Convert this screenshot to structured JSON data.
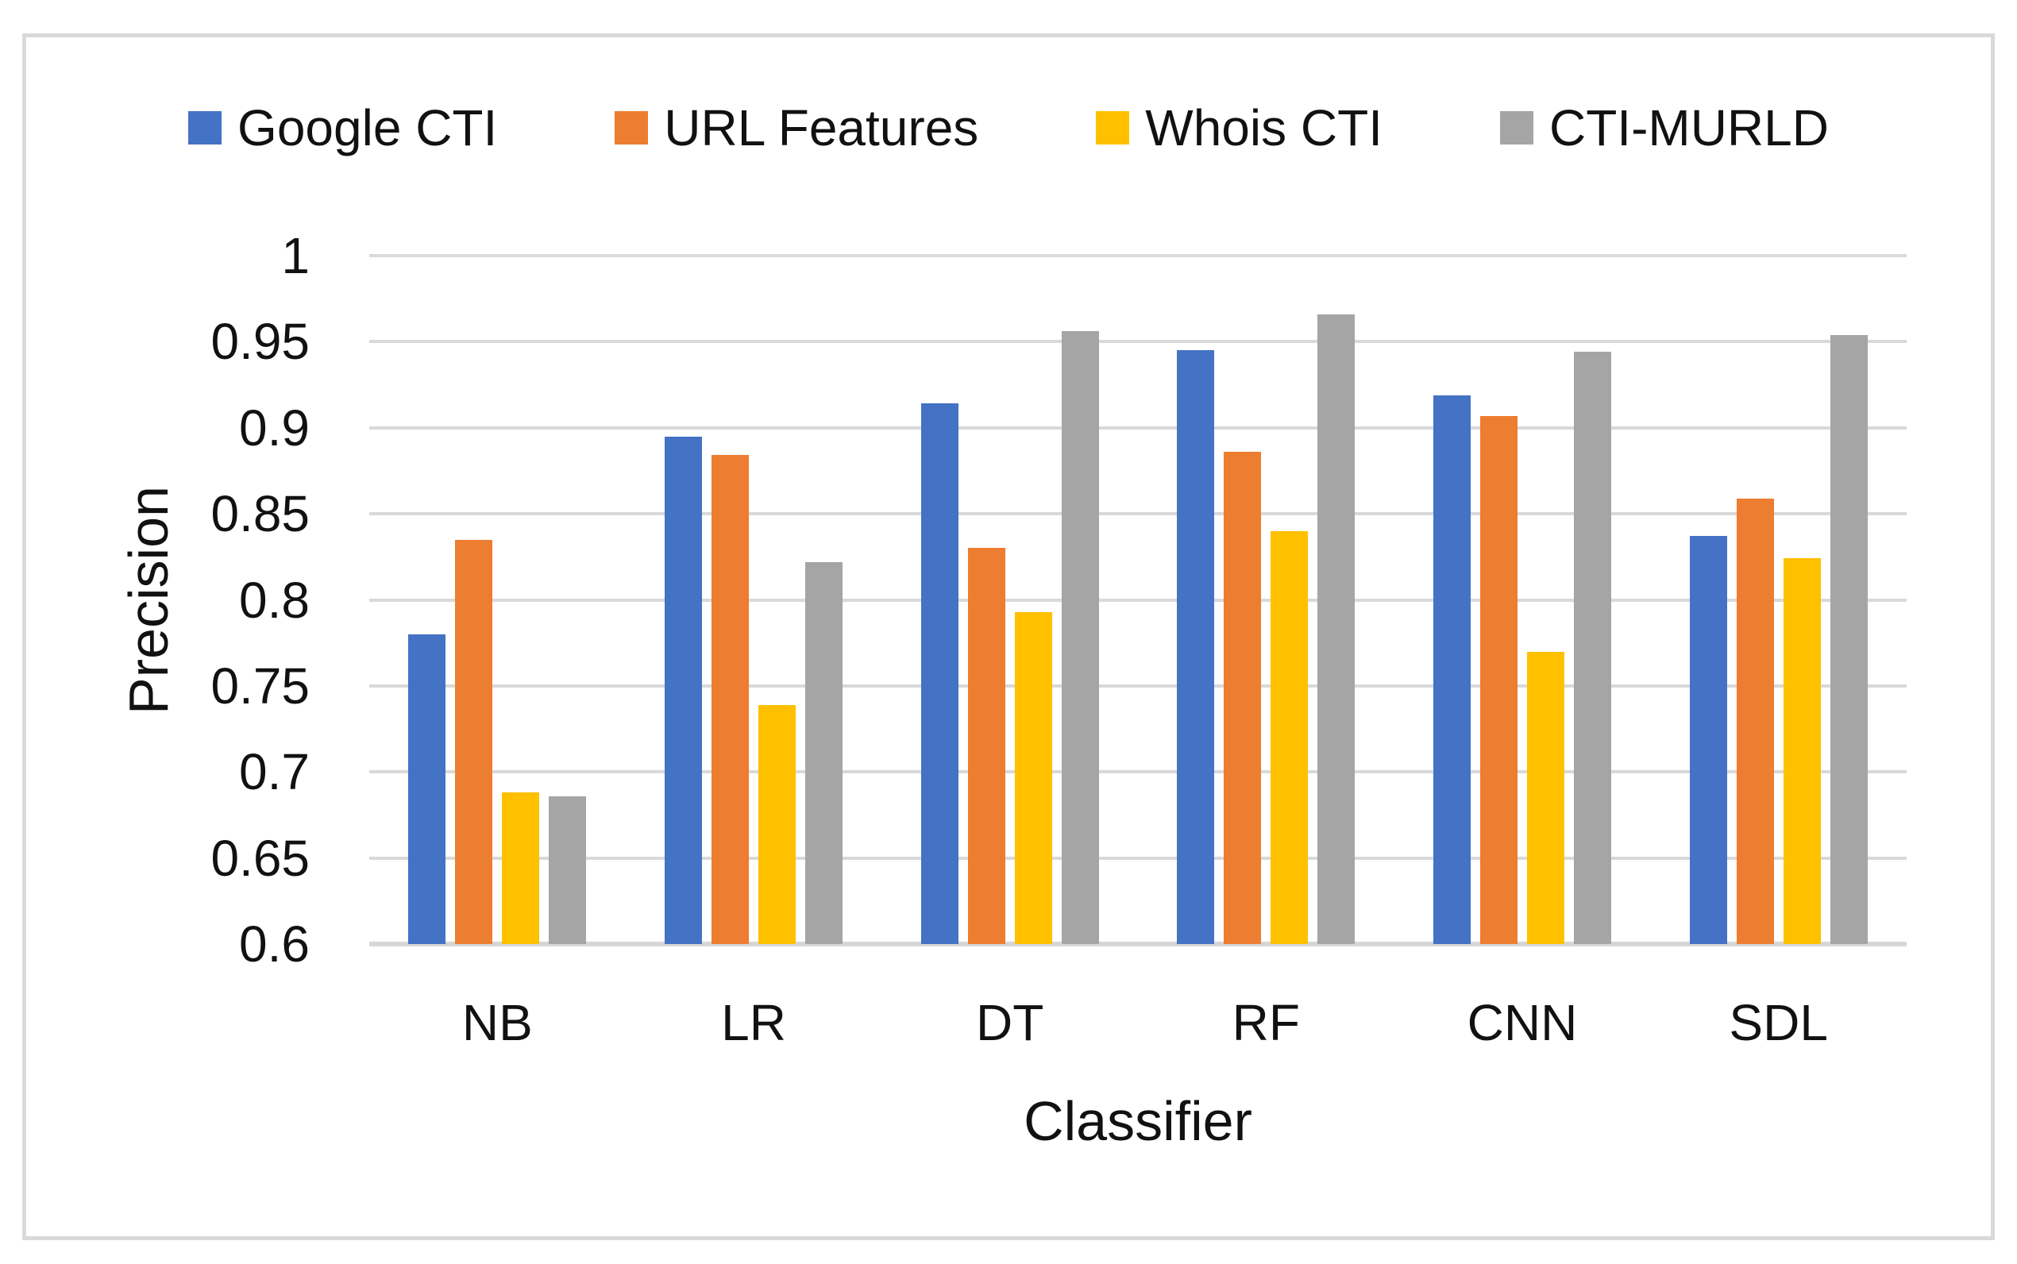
{
  "chart_data": {
    "type": "bar",
    "title": "",
    "xlabel": "Classifier",
    "ylabel": "Precision",
    "categories": [
      "NB",
      "LR",
      "DT",
      "RF",
      "CNN",
      "SDL"
    ],
    "series": [
      {
        "name": "Google CTI",
        "color": "#4472C4",
        "values": [
          0.78,
          0.895,
          0.914,
          0.945,
          0.919,
          0.837
        ]
      },
      {
        "name": "URL Features",
        "color": "#ED7D31",
        "values": [
          0.835,
          0.884,
          0.83,
          0.886,
          0.907,
          0.859
        ]
      },
      {
        "name": "Whois CTI",
        "color": "#FFC000",
        "values": [
          0.688,
          0.739,
          0.793,
          0.84,
          0.77,
          0.824
        ]
      },
      {
        "name": "CTI-MURLD",
        "color": "#A5A5A5",
        "values": [
          0.686,
          0.822,
          0.956,
          0.966,
          0.944,
          0.954
        ]
      }
    ],
    "ylim": [
      0.6,
      1.0
    ],
    "ytick_labels": [
      "1",
      "0.95",
      "0.9",
      "0.85",
      "0.8",
      "0.75",
      "0.7",
      "0.65",
      "0.6"
    ],
    "grid": "horizontal",
    "legend_position": "top",
    "colors": {
      "gridline": "#D9D9D9",
      "axis_line": "#D6D6D6",
      "frame_border": "#D9D9D9",
      "text": "#111111",
      "background": "#FFFFFF"
    }
  }
}
